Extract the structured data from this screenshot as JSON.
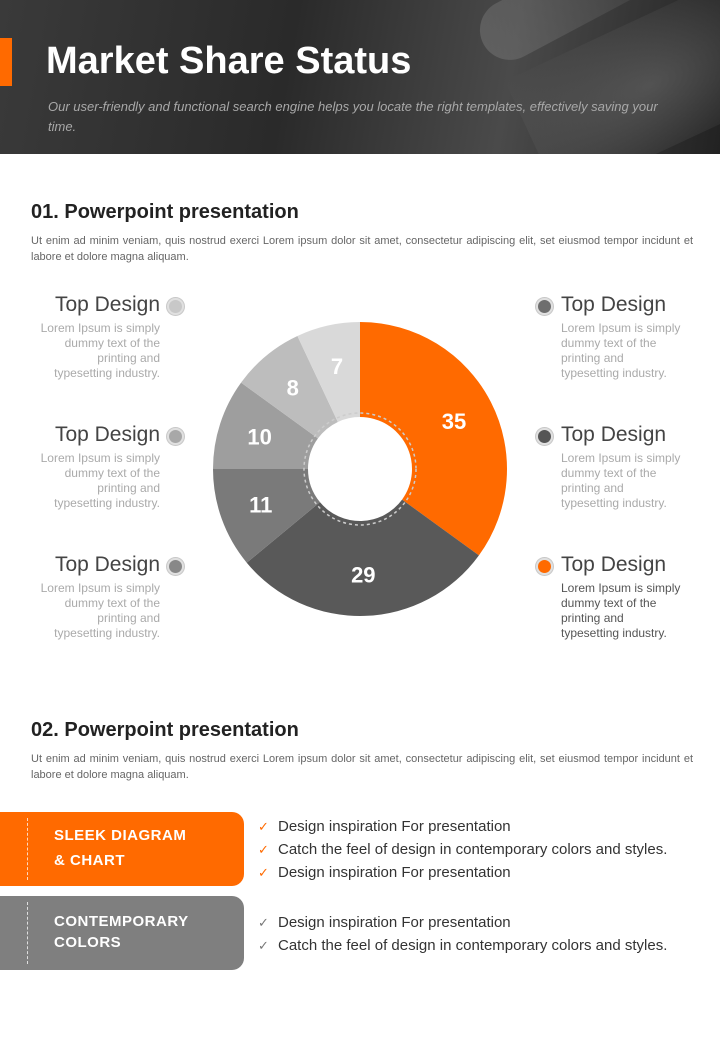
{
  "header": {
    "title": "Market Share Status",
    "subtitle": "Our user-friendly and functional search engine helps you locate the right templates, effectively saving your time."
  },
  "section1": {
    "title": "01. Powerpoint presentation",
    "text": "Ut enim ad minim veniam, quis nostrud exerci  Lorem ipsum dolor sit amet, consectetur adipiscing elit, set eiusmod tempor incidunt et labore et dolore magna aliquam."
  },
  "legend": {
    "left": [
      {
        "title": "Top Design",
        "desc": "Lorem Ipsum is simply dummy text of the printing and typesetting industry.",
        "color": "#c8c8c8"
      },
      {
        "title": "Top Design",
        "desc": "Lorem Ipsum is simply dummy text of the printing and typesetting industry.",
        "color": "#a8a8a8"
      },
      {
        "title": "Top Design",
        "desc": "Lorem Ipsum is simply dummy text of the printing and typesetting industry.",
        "color": "#888888"
      }
    ],
    "right": [
      {
        "title": "Top Design",
        "desc": "Lorem Ipsum is simply dummy text of the printing and typesetting industry.",
        "color": "#6e6e6e"
      },
      {
        "title": "Top Design",
        "desc": "Lorem Ipsum is simply dummy text of the printing and typesetting industry.",
        "color": "#555555"
      },
      {
        "title": "Top Design",
        "desc": "Lorem Ipsum is simply dummy text of the printing and typesetting industry.",
        "color": "#ff6a00"
      }
    ]
  },
  "chart_data": {
    "type": "pie",
    "categories": [
      "",
      "",
      "",
      "",
      "",
      ""
    ],
    "values": [
      35,
      29,
      11,
      10,
      8,
      7
    ],
    "colors": [
      "#ff6a00",
      "#595959",
      "#7a7a7a",
      "#9e9e9e",
      "#bdbdbd",
      "#d9d9d9"
    ],
    "donut": true
  },
  "section2": {
    "title": "02. Powerpoint presentation",
    "text": "Ut enim ad minim veniam, quis nostrud exerci  Lorem ipsum dolor sit amet, consectetur adipiscing elit, set eiusmod tempor incidunt et labore et dolore magna aliquam."
  },
  "bars": [
    {
      "line1": "SLEEK DIAGRAM",
      "line2": "& CHART",
      "color": "#ff6a00",
      "checks": [
        "Design inspiration For presentation",
        "Catch the feel of design in contemporary colors and styles.",
        "Design inspiration For presentation"
      ]
    },
    {
      "line1": "CONTEMPORARY",
      "line2": "COLORS",
      "color": "#7f7f7f",
      "checks": [
        "Design inspiration For presentation",
        "Catch the feel of design in contemporary colors and styles."
      ]
    }
  ],
  "icons": {
    "check": "✓",
    "check_color": "#ff6a00"
  }
}
